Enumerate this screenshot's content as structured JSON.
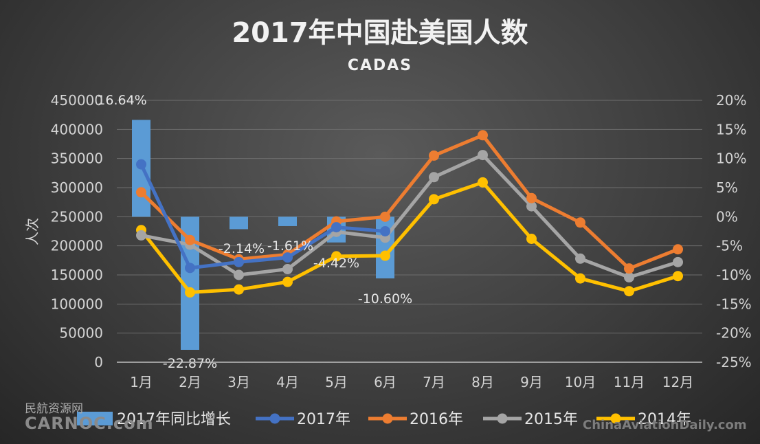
{
  "chart_data": {
    "type": "bar+line",
    "title": "2017年中国赴美国人数",
    "subtitle": "CADAS",
    "ylabel": "人次",
    "categories": [
      "1月",
      "2月",
      "3月",
      "4月",
      "5月",
      "6月",
      "7月",
      "8月",
      "9月",
      "10月",
      "11月",
      "12月"
    ],
    "left_axis": {
      "ticks": [
        "0",
        "50000",
        "100000",
        "150000",
        "200000",
        "250000",
        "300000",
        "350000",
        "400000",
        "450000"
      ],
      "range": [
        0,
        450000
      ]
    },
    "right_axis": {
      "ticks": [
        "-25%",
        "-20%",
        "-15%",
        "-10%",
        "-5%",
        "0%",
        "5%",
        "10%",
        "15%",
        "20%"
      ],
      "range": [
        -25,
        20
      ]
    },
    "bar_series": {
      "name": "2017年同比增长",
      "color": "#5b9bd5",
      "values": [
        16.64,
        -22.87,
        -2.14,
        -1.61,
        -4.42,
        -10.6
      ],
      "labels": [
        "16.64%",
        "-22.87%",
        "-2.14%",
        "-1.61%",
        "-4.42%",
        "-10.60%"
      ]
    },
    "line_series": [
      {
        "name": "2017年",
        "color": "#4472c4",
        "values": [
          340000,
          162000,
          172000,
          180000,
          232000,
          225000
        ]
      },
      {
        "name": "2016年",
        "color": "#ed7d31",
        "values": [
          292000,
          210000,
          177000,
          185000,
          242000,
          250000,
          355000,
          390000,
          282000,
          240000,
          161000,
          194000
        ]
      },
      {
        "name": "2015年",
        "color": "#a5a5a5",
        "values": [
          218000,
          202000,
          150000,
          160000,
          224000,
          214000,
          318000,
          356000,
          268000,
          178000,
          146000,
          172000
        ]
      },
      {
        "name": "2014年",
        "color": "#ffc000",
        "values": [
          227000,
          120000,
          125000,
          138000,
          182000,
          183000,
          280000,
          309000,
          212000,
          144000,
          122000,
          148000
        ]
      }
    ],
    "grid": true,
    "legend_position": "bottom"
  },
  "watermarks": {
    "left_cn": "民航资源网",
    "left_en": "CARNOC.com",
    "right_en": "ChinaAviationDaily.com"
  }
}
